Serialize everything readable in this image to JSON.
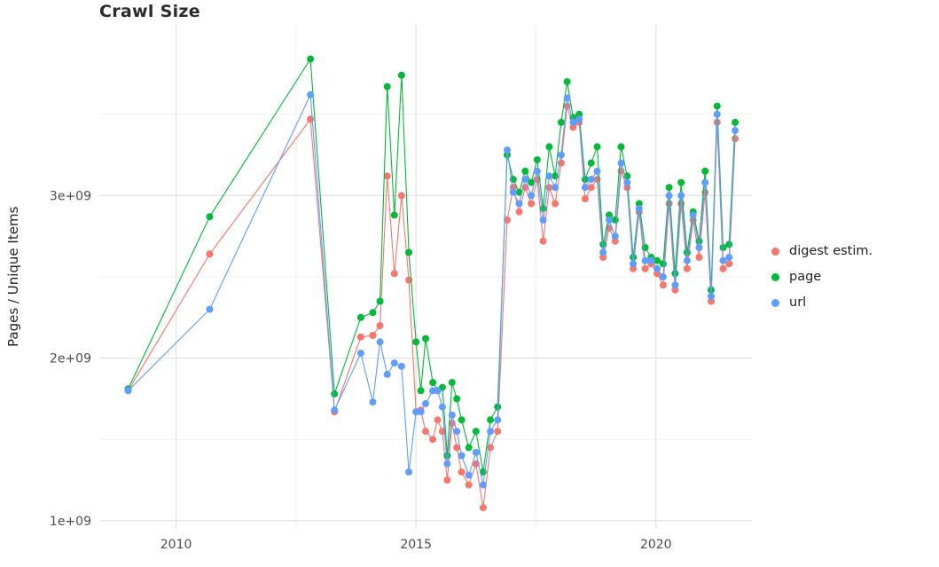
{
  "chart_data": {
    "type": "line",
    "title": "Crawl Size",
    "xlabel": "",
    "ylabel": "Pages / Unique Items",
    "legend_position": "right",
    "grid": true,
    "background": "#ffffff",
    "major_grid_color": "#e3e3e3",
    "minor_grid_color": "#f1f1f1",
    "axis_text_color": "#4d4d4d",
    "xlim": [
      2008.4,
      2022.0
    ],
    "ylim": [
      950000000.0,
      4050000000.0
    ],
    "x_ticks": [
      {
        "value": 2010,
        "label": "2010"
      },
      {
        "value": 2015,
        "label": "2015"
      },
      {
        "value": 2020,
        "label": "2020"
      }
    ],
    "x_minor_ticks": [
      2012.5,
      2017.5
    ],
    "y_ticks": [
      {
        "value": 1000000000.0,
        "label": "1e+09"
      },
      {
        "value": 2000000000.0,
        "label": "2e+09"
      },
      {
        "value": 3000000000.0,
        "label": "3e+09"
      }
    ],
    "y_minor_ticks": [
      1500000000.0,
      2500000000.0,
      3500000000.0
    ],
    "x": [
      2009.0,
      2010.7,
      2012.8,
      2013.3,
      2013.85,
      2014.1,
      2014.25,
      2014.4,
      2014.55,
      2014.7,
      2014.85,
      2015.0,
      2015.1,
      2015.2,
      2015.35,
      2015.45,
      2015.55,
      2015.65,
      2015.75,
      2015.85,
      2015.95,
      2016.1,
      2016.25,
      2016.4,
      2016.55,
      2016.7,
      2016.9,
      2017.025,
      2017.15,
      2017.275,
      2017.4,
      2017.525,
      2017.65,
      2017.775,
      2017.9,
      2018.025,
      2018.15,
      2018.275,
      2018.4,
      2018.525,
      2018.65,
      2018.775,
      2018.9,
      2019.025,
      2019.15,
      2019.275,
      2019.4,
      2019.525,
      2019.65,
      2019.775,
      2019.9,
      2020.025,
      2020.15,
      2020.275,
      2020.4,
      2020.525,
      2020.65,
      2020.775,
      2020.9,
      2021.025,
      2021.15,
      2021.275,
      2021.4,
      2021.525,
      2021.65
    ],
    "series": [
      {
        "id": "digest",
        "name": "digest estim.",
        "color": "#F8766D",
        "values": [
          1800000000.0,
          2640000000.0,
          3470000000.0,
          1670000000.0,
          2130000000.0,
          2140000000.0,
          2200000000.0,
          3120000000.0,
          2520000000.0,
          3000000000.0,
          2480000000.0,
          1670000000.0,
          1680000000.0,
          1550000000.0,
          1500000000.0,
          1620000000.0,
          1550000000.0,
          1250000000.0,
          1600000000.0,
          1450000000.0,
          1300000000.0,
          1220000000.0,
          1350000000.0,
          1080000000.0,
          1450000000.0,
          1550000000.0,
          2850000000.0,
          3050000000.0,
          2900000000.0,
          3050000000.0,
          2950000000.0,
          3100000000.0,
          2720000000.0,
          3050000000.0,
          2950000000.0,
          3200000000.0,
          3550000000.0,
          3420000000.0,
          3450000000.0,
          2980000000.0,
          3050000000.0,
          3100000000.0,
          2620000000.0,
          2800000000.0,
          2720000000.0,
          3150000000.0,
          3050000000.0,
          2550000000.0,
          2900000000.0,
          2550000000.0,
          2580000000.0,
          2520000000.0,
          2450000000.0,
          2950000000.0,
          2420000000.0,
          2950000000.0,
          2550000000.0,
          2850000000.0,
          2620000000.0,
          3020000000.0,
          2350000000.0,
          3450000000.0,
          2550000000.0,
          2580000000.0,
          3350000000.0
        ]
      },
      {
        "id": "page",
        "name": "page",
        "color": "#00BA38",
        "values": [
          1810000000.0,
          2870000000.0,
          3840000000.0,
          1780000000.0,
          2250000000.0,
          2280000000.0,
          2350000000.0,
          3670000000.0,
          2880000000.0,
          3740000000.0,
          2650000000.0,
          2100000000.0,
          1800000000.0,
          2120000000.0,
          1850000000.0,
          1800000000.0,
          1820000000.0,
          1400000000.0,
          1850000000.0,
          1750000000.0,
          1620000000.0,
          1450000000.0,
          1550000000.0,
          1300000000.0,
          1620000000.0,
          1700000000.0,
          3250000000.0,
          3100000000.0,
          3020000000.0,
          3150000000.0,
          3080000000.0,
          3220000000.0,
          2920000000.0,
          3300000000.0,
          3120000000.0,
          3450000000.0,
          3700000000.0,
          3480000000.0,
          3500000000.0,
          3100000000.0,
          3200000000.0,
          3300000000.0,
          2700000000.0,
          2880000000.0,
          2850000000.0,
          3300000000.0,
          3120000000.0,
          2620000000.0,
          2950000000.0,
          2680000000.0,
          2620000000.0,
          2600000000.0,
          2580000000.0,
          3050000000.0,
          2520000000.0,
          3080000000.0,
          2650000000.0,
          2900000000.0,
          2720000000.0,
          3150000000.0,
          2420000000.0,
          3550000000.0,
          2680000000.0,
          2700000000.0,
          3450000000.0
        ]
      },
      {
        "id": "url",
        "name": "url",
        "color": "#619CFF",
        "values": [
          1800000000.0,
          2300000000.0,
          3620000000.0,
          1680000000.0,
          2030000000.0,
          1730000000.0,
          2100000000.0,
          1900000000.0,
          1970000000.0,
          1950000000.0,
          1300000000.0,
          1670000000.0,
          1670000000.0,
          1720000000.0,
          1800000000.0,
          1800000000.0,
          1700000000.0,
          1350000000.0,
          1650000000.0,
          1550000000.0,
          1400000000.0,
          1280000000.0,
          1420000000.0,
          1220000000.0,
          1550000000.0,
          1620000000.0,
          3280000000.0,
          3020000000.0,
          2950000000.0,
          3100000000.0,
          3000000000.0,
          3150000000.0,
          2850000000.0,
          3120000000.0,
          3050000000.0,
          3250000000.0,
          3600000000.0,
          3450000000.0,
          3470000000.0,
          3050000000.0,
          3100000000.0,
          3150000000.0,
          2650000000.0,
          2850000000.0,
          2750000000.0,
          3200000000.0,
          3080000000.0,
          2580000000.0,
          2920000000.0,
          2600000000.0,
          2600000000.0,
          2550000000.0,
          2500000000.0,
          3000000000.0,
          2450000000.0,
          3000000000.0,
          2600000000.0,
          2880000000.0,
          2680000000.0,
          3080000000.0,
          2380000000.0,
          3500000000.0,
          2600000000.0,
          2620000000.0,
          3400000000.0
        ]
      }
    ]
  }
}
